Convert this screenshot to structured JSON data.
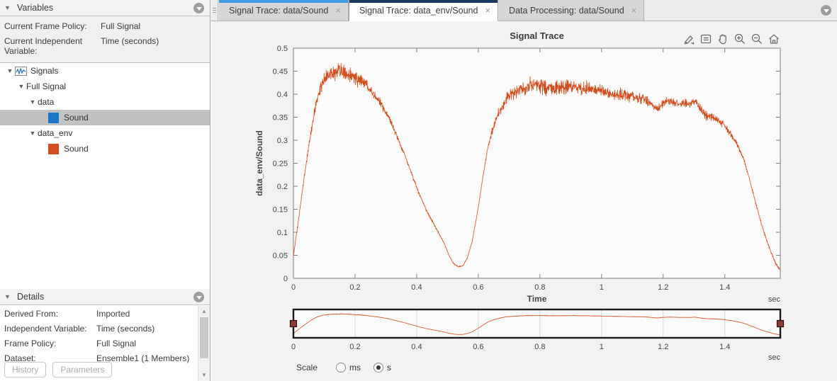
{
  "left_panel": {
    "variables": {
      "title": "Variables",
      "rows": [
        {
          "label": "Current Frame Policy:",
          "value": "Full Signal"
        },
        {
          "label": "Current Independent Variable:",
          "value": "Time (seconds)"
        }
      ],
      "tree": {
        "root": "Signals",
        "group": "Full Signal",
        "node1": "data",
        "node1_child": "Sound",
        "node1_color": "#1976c9",
        "node2": "data_env",
        "node2_child": "Sound",
        "node2_color": "#d2501f"
      }
    },
    "details": {
      "title": "Details",
      "rows": [
        {
          "label": "Derived From:",
          "value": "Imported"
        },
        {
          "label": "Independent Variable:",
          "value": "Time (seconds)"
        },
        {
          "label": "Frame Policy:",
          "value": "Full Signal"
        },
        {
          "label": "Dataset:",
          "value": "Ensemble1 (1 Members)"
        }
      ],
      "buttons": {
        "history": "History",
        "parameters": "Parameters"
      }
    }
  },
  "tabs": [
    {
      "label": "Signal Trace: data/Sound",
      "close": "×",
      "active": false,
      "stripe": "#3f9be0"
    },
    {
      "label": "Signal Trace: data_env/Sound",
      "close": "×",
      "active": true,
      "stripe": "#1b3c5f"
    },
    {
      "label": "Data Processing: data/Sound",
      "close": "×",
      "active": false,
      "stripe": ""
    }
  ],
  "toolbar_icons": [
    "brush",
    "data-tips",
    "pan",
    "zoom-in",
    "zoom-out",
    "home"
  ],
  "scale": {
    "label": "Scale",
    "options": [
      {
        "label": "ms",
        "selected": false
      },
      {
        "label": "s",
        "selected": true
      }
    ]
  },
  "chart_data": {
    "type": "line",
    "title": "Signal Trace",
    "xlabel": "Time",
    "x_unit": "sec",
    "ylabel": "data_env/Sound",
    "xlim": [
      0,
      1.58
    ],
    "ylim": [
      0,
      0.5
    ],
    "xticks": [
      0,
      0.2,
      0.4,
      0.6,
      0.8,
      1,
      1.2,
      1.4
    ],
    "xtick_labels": [
      "0",
      "0.2",
      "0.4",
      "0.6",
      "0.8",
      "1",
      "1.2",
      "1.4"
    ],
    "yticks": [
      0,
      0.05,
      0.1,
      0.15,
      0.2,
      0.25,
      0.3,
      0.35,
      0.4,
      0.45,
      0.5
    ],
    "ytick_labels": [
      "0",
      "0.05",
      "0.1",
      "0.15",
      "0.2",
      "0.25",
      "0.3",
      "0.35",
      "0.4",
      "0.45",
      "0.5"
    ],
    "line_color": "#d2501f",
    "grid": false,
    "legend": "none",
    "series": [
      {
        "name": "data_env/Sound",
        "envelope_t_v_noise": [
          [
            0.0,
            0.048,
            0.002
          ],
          [
            0.015,
            0.12,
            0.003
          ],
          [
            0.035,
            0.22,
            0.004
          ],
          [
            0.055,
            0.31,
            0.006
          ],
          [
            0.075,
            0.385,
            0.009
          ],
          [
            0.095,
            0.425,
            0.012
          ],
          [
            0.115,
            0.442,
            0.014
          ],
          [
            0.135,
            0.448,
            0.015
          ],
          [
            0.155,
            0.452,
            0.015
          ],
          [
            0.175,
            0.445,
            0.013
          ],
          [
            0.195,
            0.438,
            0.013
          ],
          [
            0.215,
            0.432,
            0.012
          ],
          [
            0.235,
            0.42,
            0.01
          ],
          [
            0.26,
            0.4,
            0.009
          ],
          [
            0.285,
            0.378,
            0.007
          ],
          [
            0.31,
            0.35,
            0.006
          ],
          [
            0.335,
            0.31,
            0.005
          ],
          [
            0.36,
            0.27,
            0.004
          ],
          [
            0.385,
            0.225,
            0.003
          ],
          [
            0.41,
            0.18,
            0.003
          ],
          [
            0.43,
            0.15,
            0.0025
          ],
          [
            0.45,
            0.125,
            0.002
          ],
          [
            0.47,
            0.1,
            0.0015
          ],
          [
            0.49,
            0.075,
            0.001
          ],
          [
            0.505,
            0.05,
            0.001
          ],
          [
            0.52,
            0.032,
            0.0008
          ],
          [
            0.535,
            0.025,
            0.0008
          ],
          [
            0.55,
            0.027,
            0.0008
          ],
          [
            0.565,
            0.045,
            0.001
          ],
          [
            0.58,
            0.08,
            0.0015
          ],
          [
            0.6,
            0.155,
            0.002
          ],
          [
            0.615,
            0.22,
            0.003
          ],
          [
            0.63,
            0.28,
            0.004
          ],
          [
            0.645,
            0.32,
            0.006
          ],
          [
            0.66,
            0.35,
            0.008
          ],
          [
            0.675,
            0.372,
            0.009
          ],
          [
            0.69,
            0.39,
            0.01
          ],
          [
            0.71,
            0.403,
            0.011
          ],
          [
            0.73,
            0.41,
            0.012
          ],
          [
            0.755,
            0.416,
            0.013
          ],
          [
            0.78,
            0.42,
            0.013
          ],
          [
            0.81,
            0.417,
            0.012
          ],
          [
            0.84,
            0.413,
            0.012
          ],
          [
            0.87,
            0.414,
            0.012
          ],
          [
            0.9,
            0.417,
            0.012
          ],
          [
            0.93,
            0.414,
            0.011
          ],
          [
            0.96,
            0.412,
            0.011
          ],
          [
            0.99,
            0.408,
            0.01
          ],
          [
            1.02,
            0.404,
            0.01
          ],
          [
            1.05,
            0.4,
            0.01
          ],
          [
            1.08,
            0.397,
            0.009
          ],
          [
            1.11,
            0.394,
            0.009
          ],
          [
            1.14,
            0.39,
            0.009
          ],
          [
            1.16,
            0.378,
            0.007
          ],
          [
            1.18,
            0.368,
            0.006
          ],
          [
            1.2,
            0.38,
            0.007
          ],
          [
            1.22,
            0.386,
            0.008
          ],
          [
            1.25,
            0.38,
            0.007
          ],
          [
            1.28,
            0.379,
            0.007
          ],
          [
            1.305,
            0.384,
            0.007
          ],
          [
            1.325,
            0.362,
            0.008
          ],
          [
            1.345,
            0.352,
            0.008
          ],
          [
            1.37,
            0.348,
            0.007
          ],
          [
            1.395,
            0.335,
            0.006
          ],
          [
            1.42,
            0.312,
            0.005
          ],
          [
            1.44,
            0.29,
            0.004
          ],
          [
            1.46,
            0.262,
            0.004
          ],
          [
            1.48,
            0.215,
            0.003
          ],
          [
            1.5,
            0.165,
            0.003
          ],
          [
            1.52,
            0.115,
            0.0025
          ],
          [
            1.545,
            0.065,
            0.002
          ],
          [
            1.565,
            0.032,
            0.002
          ],
          [
            1.58,
            0.018,
            0.001
          ]
        ]
      }
    ],
    "panner": {
      "x_unit": "sec",
      "xticks": [
        0,
        0.2,
        0.4,
        0.6,
        0.8,
        1,
        1.2,
        1.4
      ],
      "xtick_labels": [
        "0",
        "0.2",
        "0.4",
        "0.6",
        "0.8",
        "1",
        "1.2",
        "1.4"
      ],
      "window": [
        0,
        1.58
      ],
      "handle_color": "#8f3b32"
    }
  }
}
